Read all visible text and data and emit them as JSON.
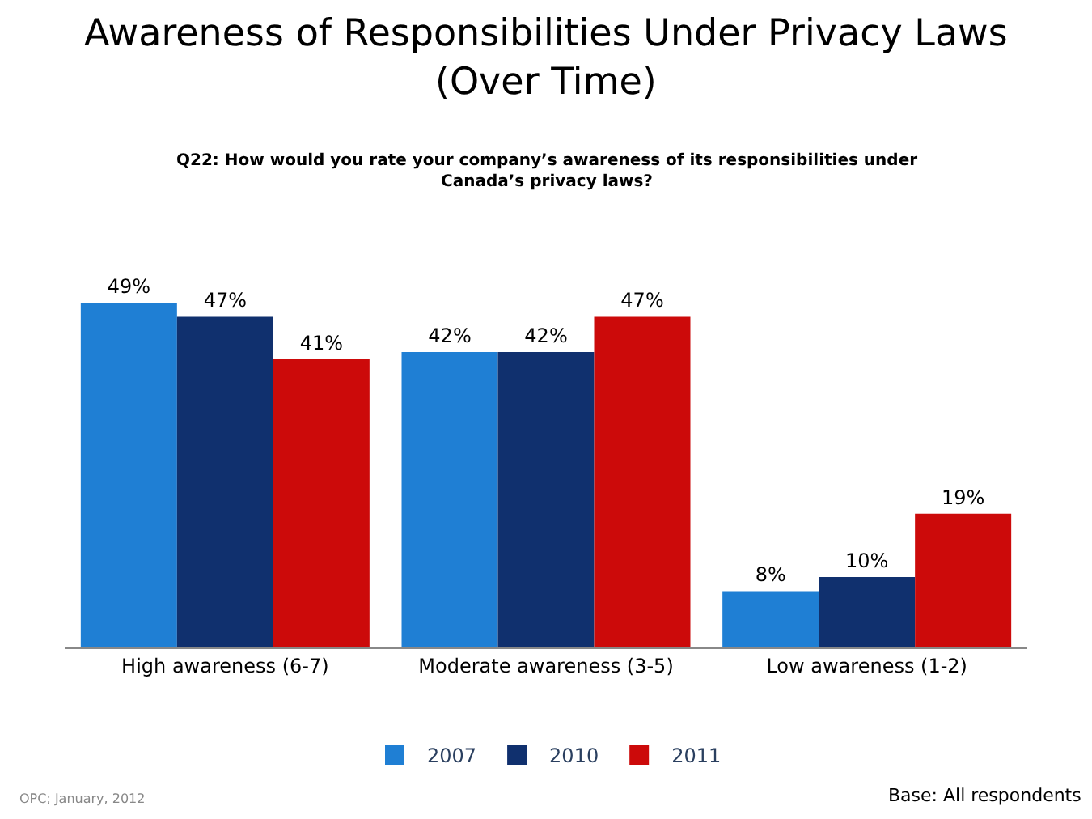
{
  "chart_data": {
    "type": "bar",
    "title": "Awareness of Responsibilities Under Privacy Laws\n(Over Time)",
    "subtitle": "Q22: How would you rate your company’s awareness of its responsibilities under\nCanada’s privacy laws?",
    "categories": [
      "High awareness (6-7)",
      "Moderate awareness (3-5)",
      "Low awareness (1-2)"
    ],
    "series": [
      {
        "name": "2007",
        "color": "#1f7fd4",
        "values": [
          49,
          42,
          8
        ],
        "value_labels": [
          "49%",
          "42%",
          "8%"
        ]
      },
      {
        "name": "2010",
        "color": "#10306e",
        "values": [
          47,
          42,
          10
        ],
        "value_labels": [
          "47%",
          "42%",
          "10%"
        ]
      },
      {
        "name": "2011",
        "color": "#cc0a0a",
        "values": [
          41,
          47,
          19
        ],
        "value_labels": [
          "41%",
          "47%",
          "19%"
        ]
      }
    ],
    "annotations": [
      "OPC; January, 2012",
      "Base: All respondents"
    ],
    "legend": "bottom"
  }
}
